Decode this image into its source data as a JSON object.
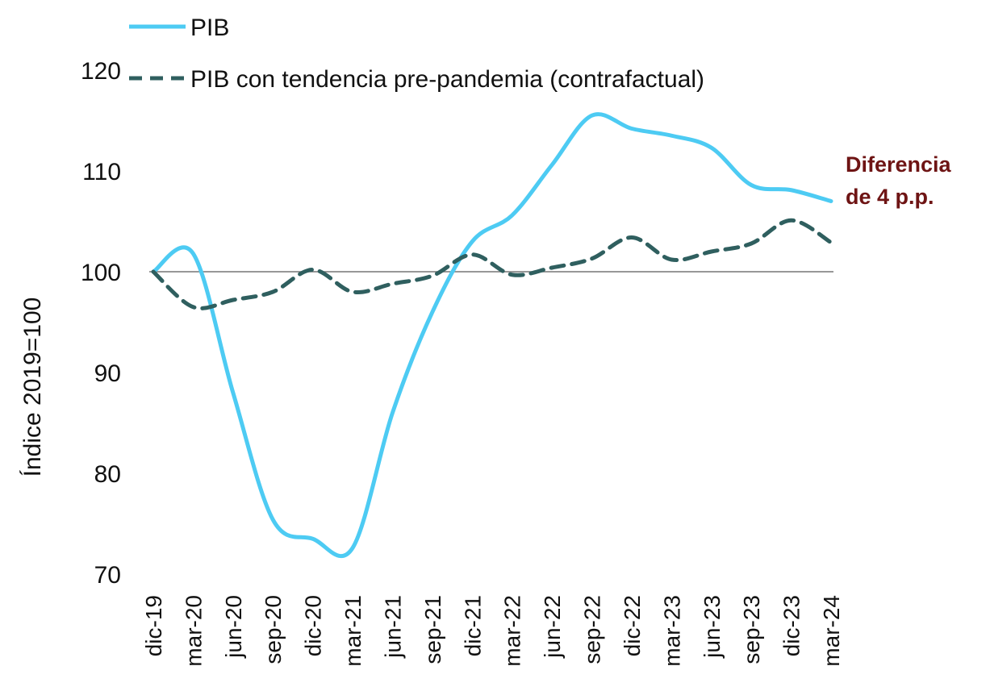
{
  "chart_data": {
    "type": "line",
    "categories": [
      "dic-19",
      "mar-20",
      "jun-20",
      "sep-20",
      "dic-20",
      "mar-21",
      "jun-21",
      "sep-21",
      "dic-21",
      "mar-22",
      "jun-22",
      "sep-22",
      "dic-22",
      "mar-23",
      "jun-23",
      "sep-23",
      "dic-23",
      "mar-24"
    ],
    "series": [
      {
        "name": "PIB",
        "color": "#4dcbf3",
        "dash": false,
        "values": [
          100,
          101.8,
          88,
          75.4,
          73.5,
          72.6,
          86,
          96,
          103,
          105.6,
          110.6,
          115.5,
          114.2,
          113.5,
          112.3,
          108.6,
          108.1,
          107
        ]
      },
      {
        "name": "PIB con tendencia pre-pandemia (contrafactual)",
        "color": "#2f5f5f",
        "dash": true,
        "values": [
          100,
          96.5,
          97.2,
          98.0,
          100.2,
          98.0,
          98.8,
          99.6,
          101.7,
          99.7,
          100.4,
          101.3,
          103.4,
          101.2,
          102.0,
          102.8,
          105.1,
          102.9
        ]
      }
    ],
    "ylabel": "Índice 2019=100",
    "ylim": [
      70,
      120
    ],
    "yticks": [
      70,
      80,
      90,
      100,
      110,
      120
    ],
    "reference_line": 100,
    "annotation": {
      "lines": [
        "Diferencia",
        "de 4 p.p."
      ],
      "color": "#6e1414"
    },
    "legend": "top-left",
    "grid": false
  }
}
